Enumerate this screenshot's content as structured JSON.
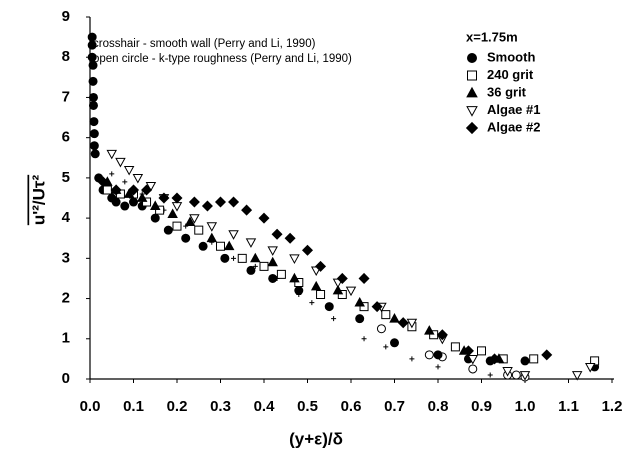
{
  "chart_data": {
    "type": "scatter",
    "xlabel": "(y+ε)/δ",
    "ylabel": "u'²/Uτ²",
    "xlim": [
      0,
      1.2
    ],
    "ylim": [
      0,
      9
    ],
    "xticks": [
      {
        "value": 0,
        "label": "0.0"
      },
      0.1,
      0.2,
      0.3,
      0.4,
      0.5,
      0.6,
      0.7,
      0.8,
      0.9,
      {
        "value": 1,
        "label": "1.0"
      },
      1.1,
      1.2
    ],
    "yticks": [
      0,
      1,
      2,
      3,
      4,
      5,
      6,
      7,
      8,
      9
    ],
    "legend_title": "x=1.75m",
    "legend": "upper right",
    "series": [
      {
        "name": "Smooth",
        "color": "#000000",
        "marker": "circle",
        "filled": true,
        "x": [
          0.005,
          0.005,
          0.005,
          0.007,
          0.007,
          0.008,
          0.008,
          0.009,
          0.01,
          0.01,
          0.012,
          0.02,
          0.03,
          0.05,
          0.06,
          0.08,
          0.1,
          0.12,
          0.15,
          0.18,
          0.22,
          0.26,
          0.31,
          0.37,
          0.42,
          0.48,
          0.55,
          0.62,
          0.7,
          0.8,
          0.87,
          0.92,
          1.0,
          1.16
        ],
        "y": [
          8.5,
          8.3,
          8.0,
          7.8,
          7.4,
          7.0,
          6.8,
          6.4,
          6.1,
          5.8,
          5.6,
          5.0,
          4.7,
          4.5,
          4.4,
          4.3,
          4.4,
          4.3,
          4.0,
          3.7,
          3.5,
          3.3,
          3.0,
          2.7,
          2.5,
          2.2,
          1.8,
          1.5,
          0.9,
          0.6,
          0.5,
          0.45,
          0.45,
          0.3
        ]
      },
      {
        "name": "240 grit",
        "color": "#000000",
        "marker": "square",
        "filled": false,
        "x": [
          0.04,
          0.07,
          0.1,
          0.13,
          0.16,
          0.2,
          0.25,
          0.3,
          0.35,
          0.4,
          0.44,
          0.48,
          0.53,
          0.58,
          0.63,
          0.68,
          0.74,
          0.79,
          0.84,
          0.9,
          0.95,
          1.02,
          1.16
        ],
        "y": [
          4.7,
          4.6,
          4.6,
          4.4,
          4.2,
          3.8,
          3.7,
          3.3,
          3.0,
          2.8,
          2.6,
          2.4,
          2.1,
          2.1,
          1.8,
          1.6,
          1.3,
          1.1,
          0.8,
          0.7,
          0.5,
          0.5,
          0.45
        ]
      },
      {
        "name": "36 grit",
        "color": "#000000",
        "marker": "triangle",
        "filled": true,
        "x": [
          0.04,
          0.06,
          0.09,
          0.12,
          0.15,
          0.19,
          0.23,
          0.28,
          0.32,
          0.38,
          0.42,
          0.47,
          0.52,
          0.57,
          0.62,
          0.7,
          0.78,
          0.86,
          0.94
        ],
        "y": [
          4.9,
          4.7,
          4.6,
          4.5,
          4.3,
          4.1,
          3.9,
          3.5,
          3.3,
          3.0,
          2.9,
          2.5,
          2.3,
          2.2,
          1.9,
          1.5,
          1.2,
          0.7,
          0.5
        ]
      },
      {
        "name": "Algae #1",
        "color": "#000000",
        "marker": "triangle-down",
        "filled": false,
        "x": [
          0.05,
          0.07,
          0.09,
          0.11,
          0.14,
          0.17,
          0.2,
          0.24,
          0.28,
          0.33,
          0.37,
          0.42,
          0.47,
          0.52,
          0.57,
          0.6,
          0.67,
          0.74,
          0.81,
          0.88,
          0.96,
          1.0,
          1.12,
          1.15
        ],
        "y": [
          5.6,
          5.4,
          5.2,
          5.0,
          4.8,
          4.5,
          4.3,
          4.0,
          3.8,
          3.6,
          3.4,
          3.2,
          3.0,
          2.7,
          2.4,
          2.2,
          1.8,
          1.4,
          1.0,
          0.5,
          0.2,
          0.1,
          0.1,
          0.3
        ]
      },
      {
        "name": "Algae #2",
        "color": "#000000",
        "marker": "diamond",
        "filled": true,
        "x": [
          0.03,
          0.06,
          0.1,
          0.13,
          0.17,
          0.2,
          0.24,
          0.27,
          0.3,
          0.33,
          0.36,
          0.4,
          0.43,
          0.46,
          0.5,
          0.53,
          0.58,
          0.63,
          0.66,
          0.72,
          0.81,
          0.87,
          0.93,
          1.05
        ],
        "y": [
          4.9,
          4.7,
          4.7,
          4.7,
          4.5,
          4.5,
          4.4,
          4.3,
          4.4,
          4.4,
          4.2,
          4.0,
          3.6,
          3.5,
          3.2,
          2.8,
          2.5,
          2.5,
          1.8,
          1.4,
          1.1,
          0.7,
          0.5,
          0.6
        ]
      }
    ],
    "annotation_series": [
      {
        "name": "crosshair - smooth wall (Perry and Li, 1990)",
        "color": "#000000",
        "marker": "plus",
        "filled": false,
        "x": [
          0.05,
          0.08,
          0.12,
          0.17,
          0.22,
          0.28,
          0.33,
          0.38,
          0.43,
          0.48,
          0.51,
          0.56,
          0.63,
          0.68,
          0.74,
          0.8,
          0.88,
          0.92
        ],
        "y": [
          5.1,
          4.9,
          4.6,
          4.2,
          3.8,
          3.4,
          3.0,
          2.8,
          2.5,
          2.1,
          1.9,
          1.5,
          1.0,
          0.8,
          0.5,
          0.3,
          0.2,
          0.1
        ]
      },
      {
        "name": "open circle - k-type roughness (Perry and Li, 1990)",
        "color": "#000000",
        "marker": "circle",
        "filled": false,
        "x": [
          0.67,
          0.78,
          0.81,
          0.88,
          0.96,
          0.98,
          1.0
        ],
        "y": [
          1.25,
          0.6,
          0.55,
          0.25,
          0.1,
          0.1,
          0.05
        ]
      }
    ]
  }
}
